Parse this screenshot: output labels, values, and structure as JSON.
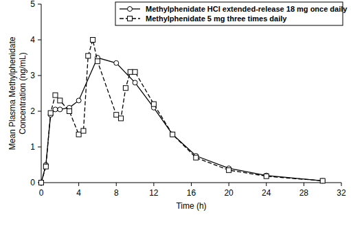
{
  "chart_data": {
    "type": "line",
    "x_label": "Time (h)",
    "y_label": "Mean Plasma Methylphenidate\nConcentration (ng/mL)",
    "xlim": [
      0,
      32
    ],
    "xticks": [
      0,
      4,
      8,
      12,
      16,
      20,
      24,
      28,
      32
    ],
    "ylim": [
      0,
      5
    ],
    "yticks": [
      0,
      1,
      2,
      3,
      4,
      5
    ],
    "legend": "top-right",
    "grid": false,
    "series": [
      {
        "name": "Methylphenidate HCl extended-release 18 mg once daily",
        "color": "#000000",
        "marker": "circle",
        "line_style": "solid",
        "x": [
          0,
          0.5,
          1,
          1.5,
          2,
          3,
          4,
          6,
          8,
          10,
          12,
          14,
          16.5,
          20,
          24,
          30
        ],
        "values": [
          0,
          0.5,
          1.9,
          2.05,
          2.05,
          2.1,
          2.3,
          3.5,
          3.35,
          2.8,
          2.1,
          1.35,
          0.75,
          0.4,
          0.2,
          0.05
        ]
      },
      {
        "name": "Methylphenidate 5 mg three times daily",
        "color": "#000000",
        "marker": "square",
        "line_style": "dashed",
        "x": [
          0,
          0.5,
          1,
          1.5,
          2,
          3,
          4,
          4.5,
          5,
          5.5,
          6,
          8,
          8.5,
          9,
          9.5,
          10,
          12,
          14,
          16.5,
          20,
          24,
          30
        ],
        "values": [
          0,
          0.45,
          1.95,
          2.45,
          2.3,
          2.0,
          1.35,
          1.45,
          3.55,
          4.0,
          3.4,
          1.9,
          1.8,
          2.65,
          3.1,
          3.1,
          2.2,
          1.35,
          0.7,
          0.35,
          0.18,
          0.05
        ]
      }
    ]
  }
}
